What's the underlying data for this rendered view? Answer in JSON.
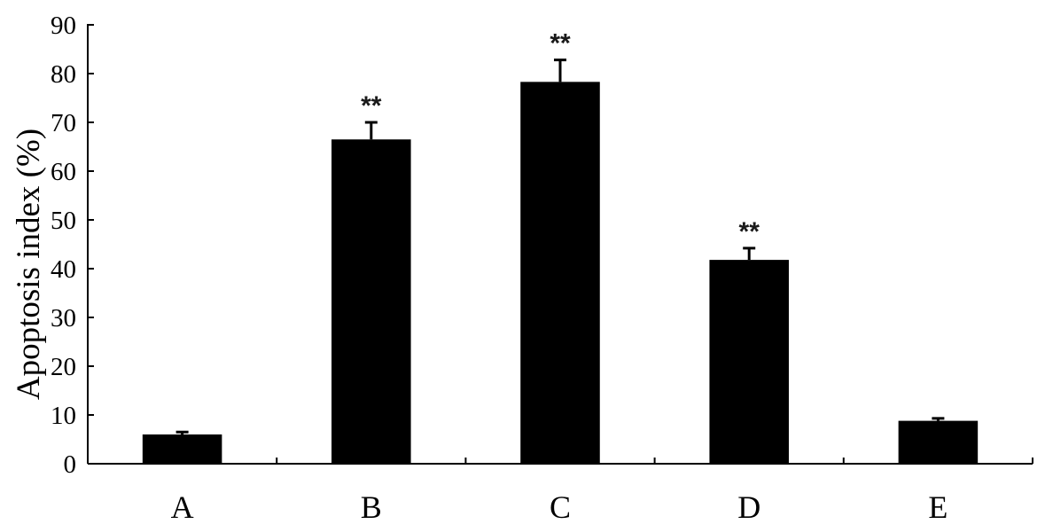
{
  "chart_data": {
    "type": "bar",
    "title": "",
    "xlabel": "",
    "ylabel": "Apoptosis index (%)",
    "ylim": [
      0,
      90
    ],
    "yticks": [
      0,
      10,
      20,
      30,
      40,
      50,
      60,
      70,
      80,
      90
    ],
    "categories": [
      "A",
      "B",
      "C",
      "D",
      "E"
    ],
    "values": [
      6,
      66.5,
      78.3,
      41.8,
      8.8
    ],
    "errors": [
      0.5,
      3.5,
      4.5,
      2.4,
      0.5
    ],
    "significance": [
      "",
      "**",
      "**",
      "**",
      ""
    ],
    "bar_color": "#000000",
    "grid": false,
    "legend": "none"
  }
}
